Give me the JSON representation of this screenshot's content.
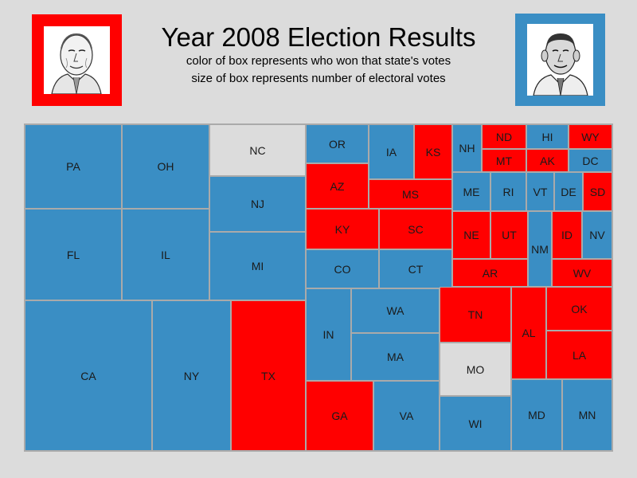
{
  "header": {
    "title": "Year 2008 Election Results",
    "subtitle_1": "color of box represents who won that state's votes",
    "subtitle_2": "size of box represents number of electoral votes"
  },
  "colors": {
    "republican": "#ff0000",
    "democrat": "#3a8ec4",
    "undecided": "#dcdcdc",
    "background": "#dcdcdc",
    "tile_border": "#aaaaaa"
  },
  "portraits": {
    "left": {
      "frame_color": "#ff0000",
      "icon": "candidate-portrait-icon"
    },
    "right": {
      "frame_color": "#3a8ec4",
      "icon": "candidate-portrait-icon"
    }
  },
  "chart_data": {
    "type": "treemap",
    "title": "Year 2008 Election Results",
    "legend_note": [
      "color of box represents who won that state's votes",
      "size of box represents number of electoral votes"
    ],
    "states": [
      {
        "label": "PA",
        "winner": "democrat"
      },
      {
        "label": "OH",
        "winner": "democrat"
      },
      {
        "label": "NC",
        "winner": "undecided"
      },
      {
        "label": "NJ",
        "winner": "democrat"
      },
      {
        "label": "FL",
        "winner": "democrat"
      },
      {
        "label": "IL",
        "winner": "democrat"
      },
      {
        "label": "MI",
        "winner": "democrat"
      },
      {
        "label": "CA",
        "winner": "democrat"
      },
      {
        "label": "NY",
        "winner": "democrat"
      },
      {
        "label": "TX",
        "winner": "republican"
      },
      {
        "label": "OR",
        "winner": "democrat"
      },
      {
        "label": "IA",
        "winner": "democrat"
      },
      {
        "label": "KS",
        "winner": "republican"
      },
      {
        "label": "AZ",
        "winner": "republican"
      },
      {
        "label": "MS",
        "winner": "republican"
      },
      {
        "label": "KY",
        "winner": "republican"
      },
      {
        "label": "SC",
        "winner": "republican"
      },
      {
        "label": "CO",
        "winner": "democrat"
      },
      {
        "label": "CT",
        "winner": "democrat"
      },
      {
        "label": "IN",
        "winner": "democrat"
      },
      {
        "label": "WA",
        "winner": "democrat"
      },
      {
        "label": "MA",
        "winner": "democrat"
      },
      {
        "label": "GA",
        "winner": "republican"
      },
      {
        "label": "VA",
        "winner": "democrat"
      },
      {
        "label": "NH",
        "winner": "democrat"
      },
      {
        "label": "ND",
        "winner": "republican"
      },
      {
        "label": "MT",
        "winner": "republican"
      },
      {
        "label": "HI",
        "winner": "democrat"
      },
      {
        "label": "AK",
        "winner": "republican"
      },
      {
        "label": "WY",
        "winner": "republican"
      },
      {
        "label": "DC",
        "winner": "democrat"
      },
      {
        "label": "ME",
        "winner": "democrat"
      },
      {
        "label": "RI",
        "winner": "democrat"
      },
      {
        "label": "VT",
        "winner": "democrat"
      },
      {
        "label": "DE",
        "winner": "democrat"
      },
      {
        "label": "SD",
        "winner": "republican"
      },
      {
        "label": "NE",
        "winner": "republican"
      },
      {
        "label": "UT",
        "winner": "republican"
      },
      {
        "label": "NM",
        "winner": "democrat"
      },
      {
        "label": "ID",
        "winner": "republican"
      },
      {
        "label": "NV",
        "winner": "democrat"
      },
      {
        "label": "AR",
        "winner": "republican"
      },
      {
        "label": "WV",
        "winner": "republican"
      },
      {
        "label": "TN",
        "winner": "republican"
      },
      {
        "label": "AL",
        "winner": "republican"
      },
      {
        "label": "OK",
        "winner": "republican"
      },
      {
        "label": "LA",
        "winner": "republican"
      },
      {
        "label": "MO",
        "winner": "undecided"
      },
      {
        "label": "WI",
        "winner": "democrat"
      },
      {
        "label": "MD",
        "winner": "democrat"
      },
      {
        "label": "MN",
        "winner": "democrat"
      }
    ]
  }
}
